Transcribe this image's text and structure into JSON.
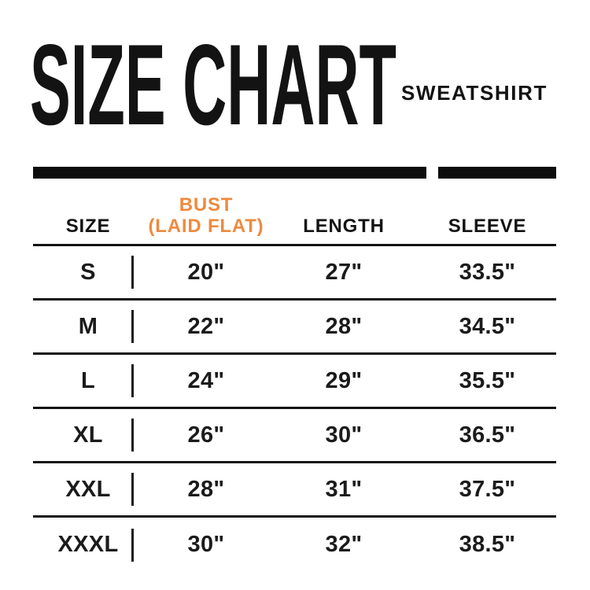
{
  "header": {
    "title": "SIZE CHART",
    "subtitle": "SWEATSHIRT"
  },
  "colors": {
    "text": "#131313",
    "accent_orange": "#EE8A3F",
    "line": "#0d0d0d",
    "background": "#ffffff"
  },
  "table_header": {
    "size": "SIZE",
    "bust_line1": "BUST",
    "bust_line2": "(LAID FLAT)",
    "length": "LENGTH",
    "sleeve": "SLEEVE"
  },
  "chart_data": {
    "type": "table",
    "title": "SIZE CHART",
    "subtitle": "SWEATSHIRT",
    "columns": [
      "SIZE",
      "BUST (LAID FLAT)",
      "LENGTH",
      "SLEEVE"
    ],
    "rows": [
      [
        "S",
        "20\"",
        "27\"",
        "33.5\""
      ],
      [
        "M",
        "22\"",
        "28\"",
        "34.5\""
      ],
      [
        "L",
        "24\"",
        "29\"",
        "35.5\""
      ],
      [
        "XL",
        "26\"",
        "30\"",
        "36.5\""
      ],
      [
        "XXL",
        "28\"",
        "31\"",
        "37.5\""
      ],
      [
        "XXXL",
        "30\"",
        "32\"",
        "38.5\""
      ]
    ],
    "units": "inches"
  }
}
